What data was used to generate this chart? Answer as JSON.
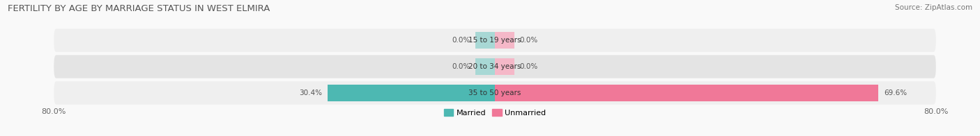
{
  "title": "FERTILITY BY AGE BY MARRIAGE STATUS IN WEST ELMIRA",
  "source": "Source: ZipAtlas.com",
  "rows": [
    {
      "label": "15 to 19 years",
      "married": 0.0,
      "unmarried": 0.0
    },
    {
      "label": "20 to 34 years",
      "married": 0.0,
      "unmarried": 0.0
    },
    {
      "label": "35 to 50 years",
      "married": 30.4,
      "unmarried": 69.6
    }
  ],
  "x_left_label": "80.0%",
  "x_right_label": "80.0%",
  "married_color": "#4db8b2",
  "unmarried_color": "#f07898",
  "row_bg_colors": [
    "#efefef",
    "#e4e4e4",
    "#efefef"
  ],
  "stub_married_color": "#a8d8d5",
  "stub_unmarried_color": "#f5b8c8",
  "title_fontsize": 9.5,
  "source_fontsize": 7.5,
  "label_fontsize": 7.5,
  "tick_fontsize": 8,
  "legend_fontsize": 8,
  "max_val": 80.0,
  "fig_bg_color": "#f9f9f9",
  "stub_size": 3.5
}
